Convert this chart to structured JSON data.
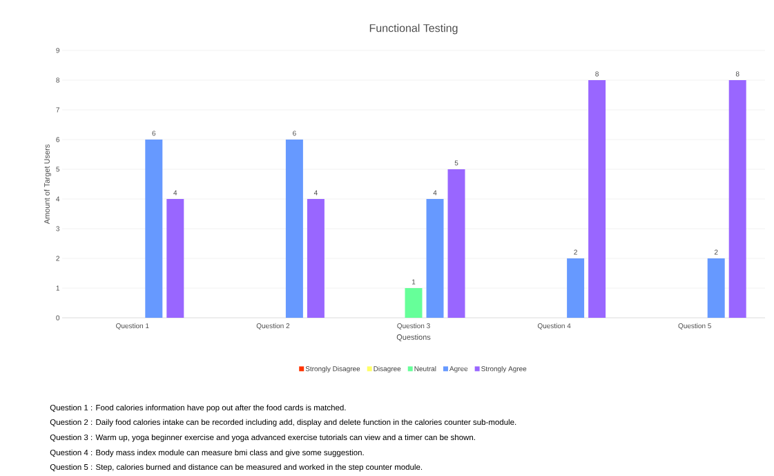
{
  "chart_data": {
    "type": "bar",
    "title": "Functional Testing",
    "xlabel": "Questions",
    "ylabel": "Amount of Target Users",
    "categories": [
      "Question 1",
      "Question 2",
      "Question 3",
      "Question 4",
      "Question 5"
    ],
    "series": [
      {
        "name": "Strongly Disagree",
        "color": "#ff3300",
        "values": [
          0,
          0,
          0,
          0,
          0
        ],
        "value_labels": [
          null,
          null,
          null,
          null,
          null
        ]
      },
      {
        "name": "Disagree",
        "color": "#ffff66",
        "values": [
          0,
          0,
          0,
          0,
          0
        ],
        "value_labels": [
          null,
          null,
          null,
          null,
          null
        ]
      },
      {
        "name": "Neutral",
        "color": "#66ff99",
        "values": [
          0,
          0,
          1,
          0,
          0
        ],
        "value_labels": [
          null,
          null,
          "1",
          null,
          null
        ]
      },
      {
        "name": "Agree",
        "color": "#6699ff",
        "values": [
          6,
          6,
          4,
          2,
          2
        ],
        "value_labels": [
          "6",
          "6",
          "4",
          "2",
          "2"
        ]
      },
      {
        "name": "Strongly Agree",
        "color": "#9966ff",
        "values": [
          4,
          4,
          5,
          8,
          8
        ],
        "value_labels": [
          "4",
          "4",
          "5",
          "8",
          "8"
        ]
      }
    ],
    "ylim": [
      0,
      9
    ],
    "yticks": [
      0,
      1,
      2,
      3,
      4,
      5,
      6,
      7,
      8,
      9
    ],
    "grid": "y",
    "legend": "bottom",
    "annotations": [
      "Question 1 : Food calories information have pop out after the food cards is matched.",
      "Question 2 : Daily food calories intake can be recorded including add, display and delete function in the calories counter sub-module.",
      "Question 3 : Warm up, yoga beginner exercise and yoga advanced exercise tutorials can view and a timer can be shown.",
      "Question 4 : Body mass index module can measure bmi class and give some suggestion.",
      "Question 5 : Step, calories burned and distance can be measured and worked in the step counter module."
    ]
  }
}
